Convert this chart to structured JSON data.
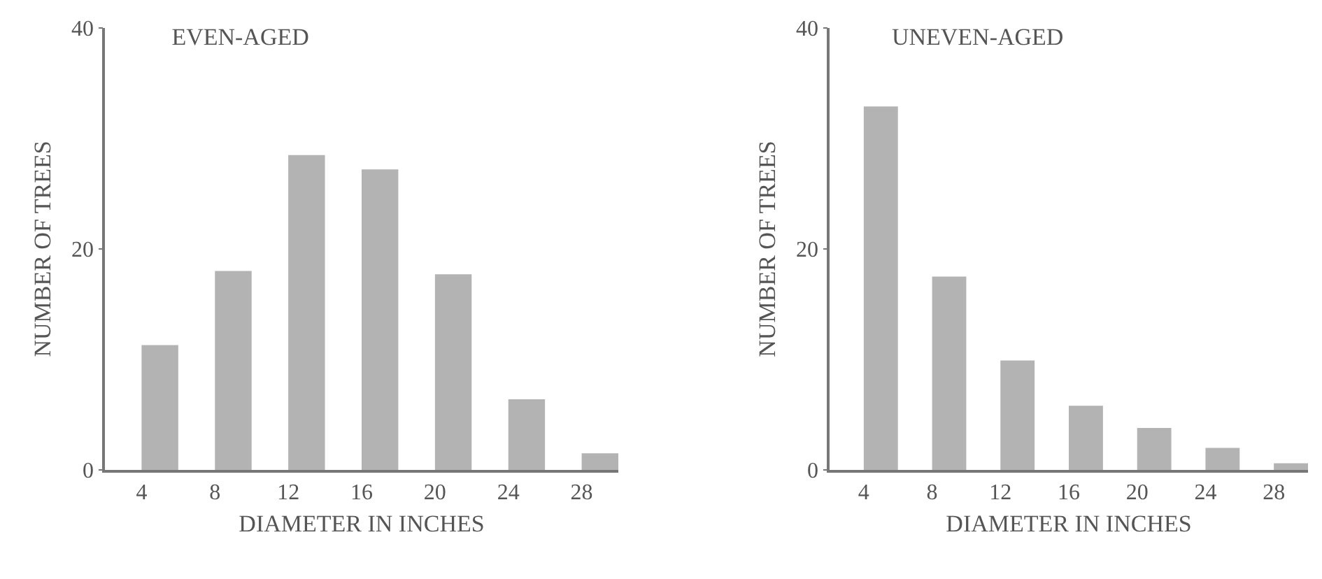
{
  "chart_data": [
    {
      "type": "bar",
      "title": "EVEN-AGED",
      "xlabel": "DIAMETER IN INCHES",
      "ylabel": "NUMBER OF TREES",
      "x": [
        5,
        9,
        13,
        17,
        21,
        25,
        29
      ],
      "values": [
        11.3,
        18,
        28.5,
        27.2,
        17.7,
        6.4,
        1.5
      ],
      "color": "#b3b3b3",
      "xlim": [
        2,
        30
      ],
      "xticks": [
        4,
        8,
        12,
        16,
        20,
        24,
        28
      ],
      "ylim": [
        0,
        40
      ],
      "yticks": [
        0,
        20,
        40
      ],
      "grid": false
    },
    {
      "type": "bar",
      "title": "UNEVEN-AGED",
      "xlabel": "DIAMETER IN INCHES",
      "ylabel": "NUMBER OF TREES",
      "x": [
        5,
        9,
        13,
        17,
        21,
        25,
        29
      ],
      "values": [
        32.9,
        17.5,
        9.9,
        5.8,
        3.8,
        2,
        0.6
      ],
      "color": "#b3b3b3",
      "xlim": [
        2,
        30
      ],
      "xticks": [
        4,
        8,
        12,
        16,
        20,
        24,
        28
      ],
      "ylim": [
        0,
        40
      ],
      "yticks": [
        0,
        20,
        40
      ],
      "grid": false
    }
  ]
}
